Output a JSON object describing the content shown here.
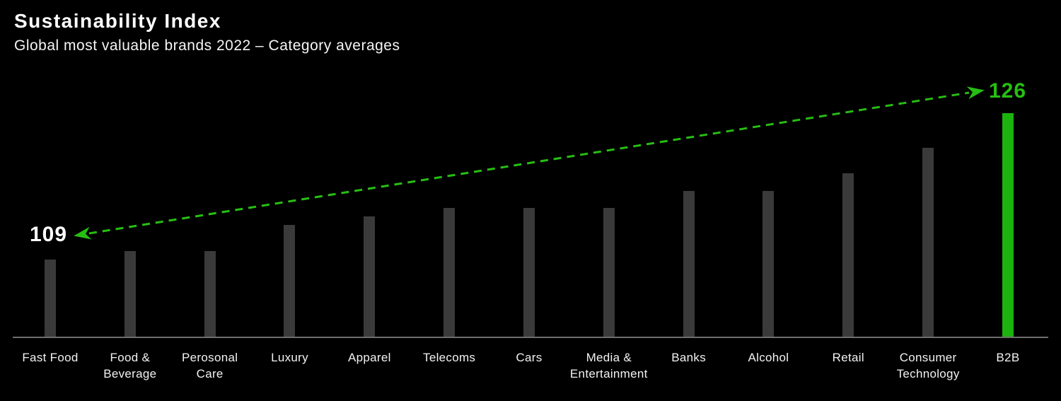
{
  "header": {
    "title": "Sustainability Index",
    "subtitle": "Global most valuable brands 2022 – Category averages"
  },
  "annotations": {
    "min_label": "109",
    "max_label": "126"
  },
  "colors": {
    "background": "#000000",
    "bar_default": "#3a3a3a",
    "bar_highlight": "#1cb30e",
    "accent_green": "#27be13",
    "axis_line": "#6e6e6e",
    "title_text": "#ffffff",
    "label_text": "#f2f2f2"
  },
  "chart_data": {
    "type": "bar",
    "title": "Sustainability Index",
    "subtitle": "Global most valuable brands 2022 – Category averages",
    "categories": [
      "Fast Food",
      "Food & Beverage",
      "Perosonal Care",
      "Luxury",
      "Apparel",
      "Telecoms",
      "Cars",
      "Media & Entertainment",
      "Banks",
      "Alcohol",
      "Retail",
      "Consumer Technology",
      "B2B"
    ],
    "values": [
      109,
      110,
      110,
      113,
      114,
      115,
      115,
      115,
      117,
      117,
      119,
      122,
      126
    ],
    "highlight_category": "B2B",
    "annotations": [
      {
        "text": "109",
        "target": "Fast Food",
        "position": "left"
      },
      {
        "text": "126",
        "target": "B2B",
        "position": "right"
      }
    ],
    "trend_arrow": {
      "style": "dashed",
      "double_headed": true,
      "from_value": 109,
      "to_value": 126
    },
    "xlabel": "",
    "ylabel": "",
    "ylim": [
      100,
      126
    ],
    "grid": false,
    "legend": false,
    "value_axis_hidden": true
  }
}
